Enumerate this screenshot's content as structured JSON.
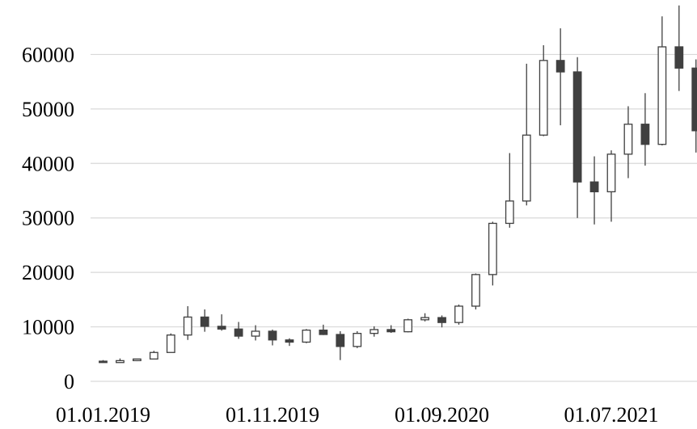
{
  "chart_data": {
    "type": "candlestick",
    "title": "",
    "xlabel": "",
    "ylabel": "",
    "ylim": [
      0,
      70000
    ],
    "y_ticks": [
      "0",
      "10000",
      "20000",
      "30000",
      "40000",
      "50000",
      "60000"
    ],
    "x_tick_labels": [
      "01.01.2019",
      "01.11.2019",
      "01.09.2020",
      "01.07.2021"
    ],
    "grid": "horizontal",
    "colors": {
      "up_fill": "#ffffff",
      "down_fill": "#404040",
      "stroke": "#404040",
      "grid": "#d9d9d9"
    },
    "candles": [
      {
        "x": "01.01.2019",
        "open": 3700,
        "high": 3900,
        "low": 3400,
        "close": 3450
      },
      {
        "x": "01.02.2019",
        "open": 3450,
        "high": 4200,
        "low": 3400,
        "close": 3800
      },
      {
        "x": "01.03.2019",
        "open": 3800,
        "high": 4100,
        "low": 3700,
        "close": 4100
      },
      {
        "x": "01.04.2019",
        "open": 4100,
        "high": 5600,
        "low": 4100,
        "close": 5300
      },
      {
        "x": "01.05.2019",
        "open": 5300,
        "high": 8800,
        "low": 5300,
        "close": 8500
      },
      {
        "x": "01.06.2019",
        "open": 8500,
        "high": 13800,
        "low": 7600,
        "close": 11800
      },
      {
        "x": "01.07.2019",
        "open": 11800,
        "high": 13200,
        "low": 9100,
        "close": 10100
      },
      {
        "x": "01.08.2019",
        "open": 10100,
        "high": 12300,
        "low": 9300,
        "close": 9600
      },
      {
        "x": "01.09.2019",
        "open": 9600,
        "high": 10900,
        "low": 7800,
        "close": 8300
      },
      {
        "x": "01.10.2019",
        "open": 8300,
        "high": 10300,
        "low": 7500,
        "close": 9200
      },
      {
        "x": "01.11.2019",
        "open": 9200,
        "high": 9500,
        "low": 6600,
        "close": 7600
      },
      {
        "x": "01.12.2019",
        "open": 7600,
        "high": 7900,
        "low": 6500,
        "close": 7200
      },
      {
        "x": "01.01.2020",
        "open": 7200,
        "high": 9600,
        "low": 7000,
        "close": 9400
      },
      {
        "x": "01.02.2020",
        "open": 9400,
        "high": 10400,
        "low": 8500,
        "close": 8600
      },
      {
        "x": "01.03.2020",
        "open": 8600,
        "high": 9200,
        "low": 3900,
        "close": 6400
      },
      {
        "x": "01.04.2020",
        "open": 6400,
        "high": 9200,
        "low": 6100,
        "close": 8800
      },
      {
        "x": "01.05.2020",
        "open": 8800,
        "high": 10100,
        "low": 8200,
        "close": 9500
      },
      {
        "x": "01.06.2020",
        "open": 9500,
        "high": 10300,
        "low": 8900,
        "close": 9100
      },
      {
        "x": "01.07.2020",
        "open": 9100,
        "high": 11500,
        "low": 9000,
        "close": 11300
      },
      {
        "x": "01.08.2020",
        "open": 11300,
        "high": 12500,
        "low": 11000,
        "close": 11700
      },
      {
        "x": "01.09.2020",
        "open": 11700,
        "high": 12100,
        "low": 9900,
        "close": 10800
      },
      {
        "x": "01.10.2020",
        "open": 10800,
        "high": 14100,
        "low": 10400,
        "close": 13800
      },
      {
        "x": "01.11.2020",
        "open": 13800,
        "high": 19800,
        "low": 13200,
        "close": 19600
      },
      {
        "x": "01.12.2020",
        "open": 19600,
        "high": 29300,
        "low": 17600,
        "close": 29000
      },
      {
        "x": "01.01.2021",
        "open": 29000,
        "high": 41900,
        "low": 28200,
        "close": 33100
      },
      {
        "x": "01.02.2021",
        "open": 33100,
        "high": 58300,
        "low": 32300,
        "close": 45200
      },
      {
        "x": "01.03.2021",
        "open": 45200,
        "high": 61700,
        "low": 45000,
        "close": 58900
      },
      {
        "x": "01.04.2021",
        "open": 58900,
        "high": 64800,
        "low": 47000,
        "close": 56800
      },
      {
        "x": "01.05.2021",
        "open": 56800,
        "high": 59500,
        "low": 30000,
        "close": 36600
      },
      {
        "x": "01.06.2021",
        "open": 36600,
        "high": 41300,
        "low": 28800,
        "close": 34800
      },
      {
        "x": "01.07.2021",
        "open": 34800,
        "high": 42400,
        "low": 29300,
        "close": 41700
      },
      {
        "x": "01.08.2021",
        "open": 41700,
        "high": 50500,
        "low": 37300,
        "close": 47200
      },
      {
        "x": "01.09.2021",
        "open": 47200,
        "high": 52900,
        "low": 39600,
        "close": 43500
      },
      {
        "x": "01.10.2021",
        "open": 43500,
        "high": 67000,
        "low": 43300,
        "close": 61400
      },
      {
        "x": "01.11.2021",
        "open": 61400,
        "high": 69000,
        "low": 53300,
        "close": 57500
      },
      {
        "x": "01.12.2021",
        "open": 57500,
        "high": 59100,
        "low": 42000,
        "close": 46000
      }
    ]
  }
}
